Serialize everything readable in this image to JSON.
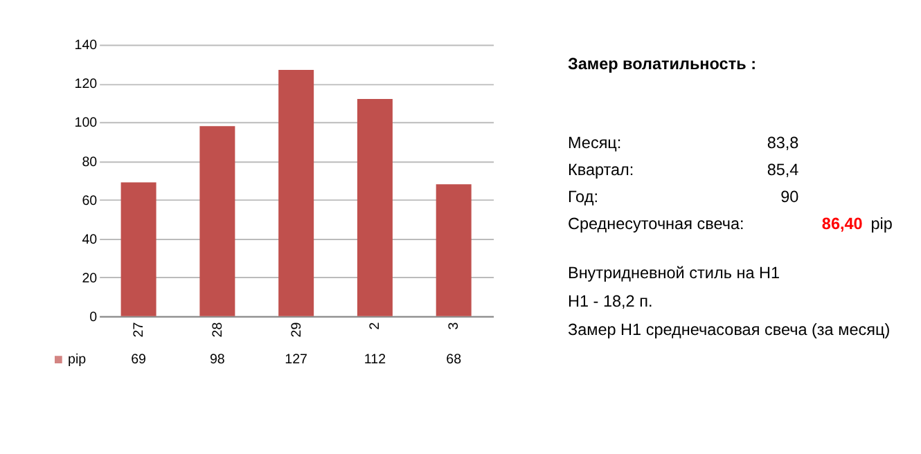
{
  "chart_data": {
    "type": "bar",
    "categories": [
      "27",
      "28",
      "29",
      "2",
      "3"
    ],
    "series": [
      {
        "name": "pip",
        "color": "#c0504d",
        "values": [
          69,
          98,
          127,
          112,
          68
        ]
      }
    ],
    "ylim": [
      0,
      140
    ],
    "yticks": [
      0,
      20,
      40,
      60,
      80,
      100,
      120,
      140
    ],
    "grid": "y",
    "data_labels": true,
    "legend": "bottom left",
    "annotations": [
      "Замер  волатильность  :",
      "Месяц:",
      "83,8",
      "Квартал:",
      "85,4",
      "Год:",
      "90",
      "Среднесуточная свеча:",
      "86,40",
      "pip",
      "Внутридневной стиль на H1",
      "H1 - 18,2 п.",
      "Замер H1 среднечасовая свеча (за месяц)"
    ]
  }
}
